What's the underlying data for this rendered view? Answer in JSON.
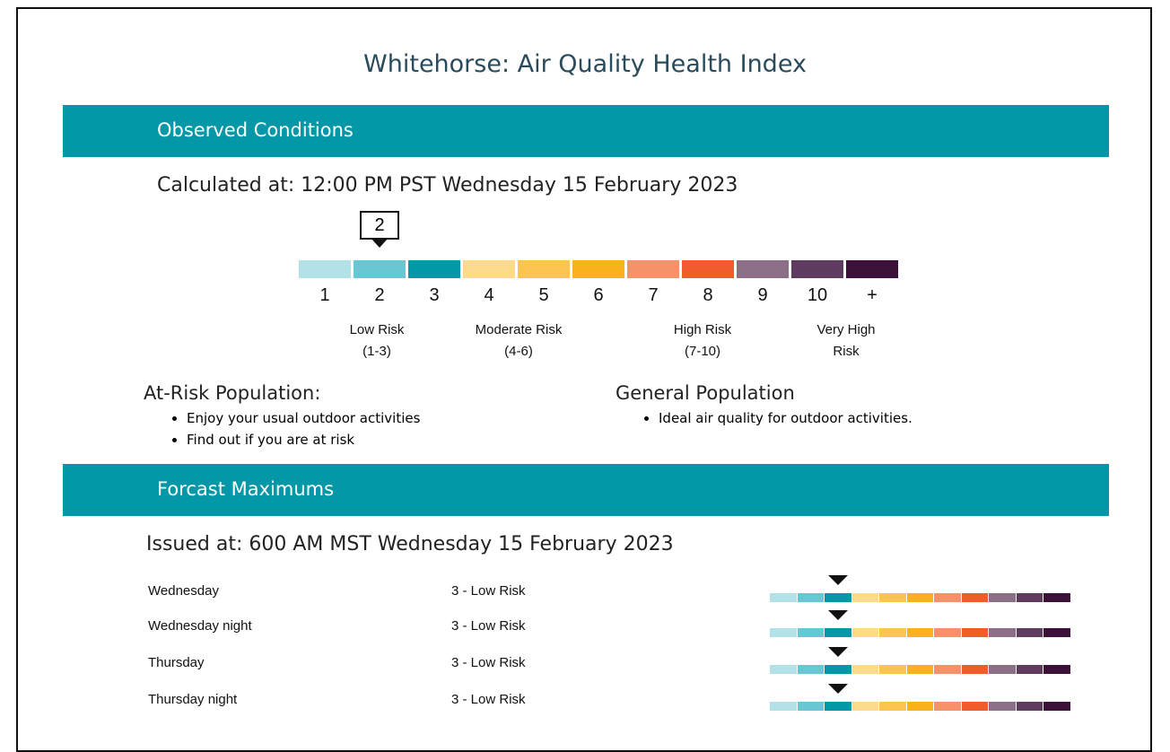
{
  "title": "Whitehorse: Air Quality Health Index",
  "observed": {
    "header": "Observed Conditions",
    "calculated": "Calculated at: 12:00 PM PST Wednesday 15 February 2023",
    "value": 2,
    "scale": {
      "labels": [
        1,
        2,
        3,
        4,
        5,
        6,
        7,
        8,
        9,
        10,
        "+"
      ],
      "colors": [
        "#b3e1e8",
        "#67c7d3",
        "#0397a7",
        "#fedb8a",
        "#fcc552",
        "#f9b21b",
        "#f69169",
        "#f15d2a",
        "#8c6e87",
        "#5e3b5f",
        "#3b1139"
      ]
    },
    "risk_categories": [
      {
        "name": "Low Risk",
        "range": "(1-3)"
      },
      {
        "name": "Moderate Risk",
        "range": "(4-6)"
      },
      {
        "name": "High Risk",
        "range": "(7-10)"
      },
      {
        "name": "Very High Risk"
      }
    ],
    "at_risk": {
      "heading": "At-Risk Population:",
      "items": [
        "Enjoy your usual outdoor activities",
        "Find out if you are at risk"
      ]
    },
    "general": {
      "heading": "General Population",
      "items": [
        "Ideal air quality for outdoor activities."
      ]
    }
  },
  "forecast": {
    "header": "Forcast Maximums",
    "issued": "Issued at: 600 AM MST Wednesday 15 February 2023",
    "rows": [
      {
        "day": "Wednesday",
        "value": 3,
        "label": "3 - Low Risk"
      },
      {
        "day": "Wednesday night",
        "value": 3,
        "label": "3 - Low Risk"
      },
      {
        "day": "Thursday",
        "value": 3,
        "label": "3 - Low Risk"
      },
      {
        "day": "Thursday night",
        "value": 3,
        "label": "3 - Low Risk"
      }
    ]
  }
}
